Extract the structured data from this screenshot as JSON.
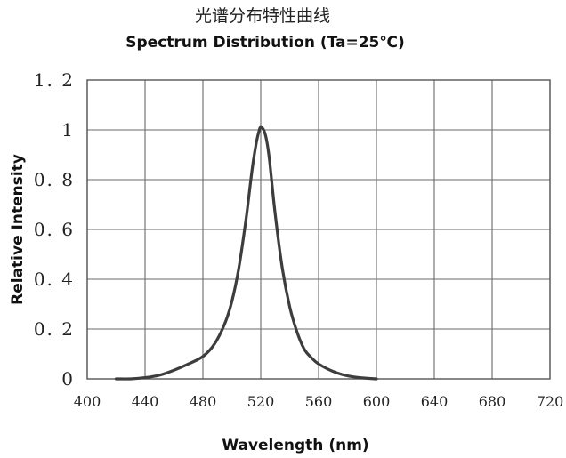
{
  "chart_data": {
    "type": "line",
    "title_cn": "光谱分布特性曲线",
    "title": "Spectrum Distribution  (Ta=25℃)",
    "xlabel": "Wavelength (nm)",
    "ylabel": "Relative Intensity",
    "xlim": [
      400,
      720
    ],
    "ylim": [
      0,
      1.2
    ],
    "x_ticks": [
      "400",
      "440",
      "480",
      "520",
      "560",
      "600",
      "640",
      "680",
      "720"
    ],
    "y_ticks": [
      "0",
      "0. 2",
      "0. 4",
      "0. 6",
      "0. 8",
      "1",
      "1. 2"
    ],
    "grid": true,
    "series": [
      {
        "color": "#3d3d3d",
        "x": [
          420,
          430,
          440,
          450,
          460,
          470,
          480,
          488,
          495,
          500,
          505,
          510,
          514,
          517,
          519,
          520,
          522,
          524,
          526,
          530,
          535,
          540,
          545,
          550,
          555,
          560,
          570,
          580,
          590,
          600
        ],
        "y": [
          0.0,
          0.0,
          0.005,
          0.015,
          0.035,
          0.06,
          0.09,
          0.14,
          0.22,
          0.31,
          0.45,
          0.65,
          0.84,
          0.95,
          1.0,
          1.01,
          1.0,
          0.96,
          0.88,
          0.66,
          0.44,
          0.29,
          0.19,
          0.12,
          0.085,
          0.06,
          0.03,
          0.012,
          0.004,
          0.0
        ]
      }
    ]
  }
}
